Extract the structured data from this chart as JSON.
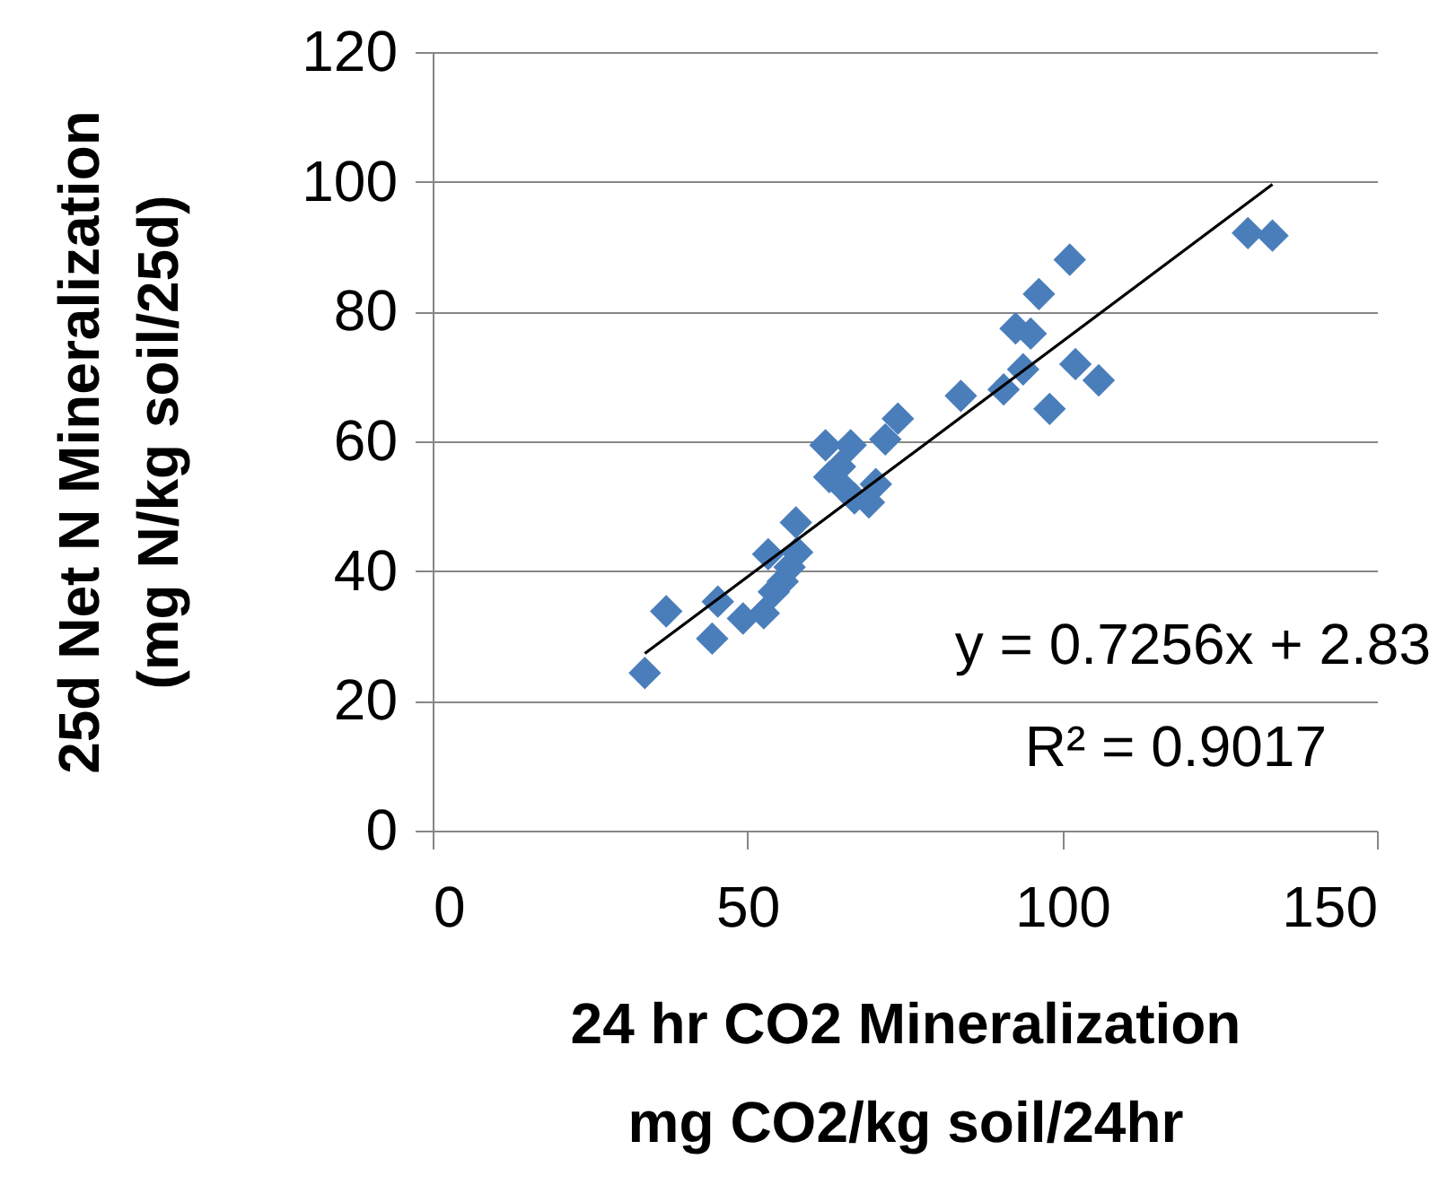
{
  "chart_data": {
    "type": "scatter",
    "xlabel": "24 hr CO2 Mineralization\nmg CO2/kg soil/24hr",
    "ylabel": "25d Net N Mineralization\n(mg N/kg soil/25d)",
    "xlim": [
      0,
      150
    ],
    "xticks": [
      0,
      50,
      100,
      150
    ],
    "ylim": [
      0,
      120
    ],
    "yticks": [
      0,
      20,
      40,
      60,
      80,
      100,
      120
    ],
    "grid": "y",
    "marker": "diamond",
    "series": [
      {
        "color": "#4a7ebb",
        "x": [
          33.7,
          37.1,
          44.4,
          45.3,
          49.3,
          52.6,
          53.3,
          54.2,
          55.6,
          56.7,
          57.9,
          57.7,
          62.4,
          63.0,
          66.4,
          65.3,
          67.0,
          69.3,
          70.4,
          71.9,
          73.9,
          64.7,
          83.9,
          90.7,
          92.6,
          95.0,
          93.8,
          96.3,
          98.0,
          101.2,
          102.1,
          105.8,
          129.5,
          133.4
        ],
        "values": [
          24.3,
          33.8,
          29.6,
          35.3,
          32.7,
          33.5,
          42.6,
          36.8,
          38.4,
          40.6,
          42.9,
          47.5,
          59.4,
          54.5,
          59.4,
          52.8,
          51.2,
          50.6,
          53.4,
          60.3,
          63.5,
          56.1,
          67.0,
          68.0,
          77.4,
          76.6,
          71.1,
          82.7,
          65.0,
          88.0,
          71.9,
          69.4,
          92.1,
          91.7
        ]
      },
      {
        "type": "line",
        "marker": "none",
        "color": "#000000",
        "x": [
          33.7,
          133.4
        ],
        "values": [
          27.3,
          99.6
        ]
      }
    ],
    "annotations": [
      "y = 0.7256x + 2.83",
      "R² = 0.9017"
    ]
  }
}
